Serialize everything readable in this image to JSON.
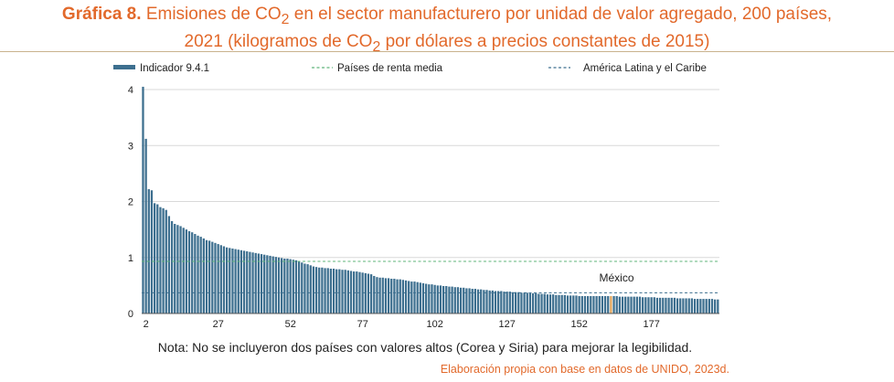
{
  "header": {
    "lead": "Gráfica 8.",
    "line1_a": "Emisiones de CO",
    "line1_sub": "2",
    "line1_b": "en el sector manufacturero por unidad de valor agregado, 200 países,",
    "line2_a": "2021 (kilogramos de CO",
    "line2_sub": "2",
    "line2_b": "por dólares a precios constantes de 2015)"
  },
  "note": "Nota: No se incluyeron dos países con valores altos (Corea y Siria) para mejorar la legibilidad.",
  "source": "Elaboración propia con base en datos de UNIDO, 2023d.",
  "colors": {
    "bar": "#3d6f8f",
    "highlight": "#e2a55a",
    "middle_income_line": "#5fb57a",
    "latam_line": "#3d6f8f",
    "title": "#e2692b"
  },
  "chart_data": {
    "type": "bar",
    "legend": [
      {
        "label": "Indicador 9.4.1",
        "style": "bar"
      },
      {
        "label": "Países de renta media",
        "style": "dashed"
      },
      {
        "label": "América Latina y el Caribe",
        "style": "dashed"
      }
    ],
    "legend_position": "top",
    "x_start": 1,
    "x_ticks": [
      2,
      27,
      52,
      77,
      102,
      127,
      152,
      177
    ],
    "y_ticks": [
      0,
      1,
      2,
      3,
      4
    ],
    "ylim": [
      0,
      4
    ],
    "grid": true,
    "reference_lines": [
      {
        "label": "Países de renta media",
        "value": 0.93
      },
      {
        "label": "América Latina y el Caribe",
        "value": 0.37
      }
    ],
    "highlight": {
      "label": "México",
      "index": 163,
      "value": 0.31
    },
    "values": [
      4.05,
      3.12,
      2.22,
      2.2,
      1.97,
      1.95,
      1.9,
      1.88,
      1.85,
      1.74,
      1.65,
      1.6,
      1.58,
      1.56,
      1.53,
      1.5,
      1.47,
      1.45,
      1.42,
      1.39,
      1.37,
      1.34,
      1.31,
      1.3,
      1.28,
      1.26,
      1.24,
      1.22,
      1.2,
      1.18,
      1.17,
      1.16,
      1.15,
      1.14,
      1.13,
      1.12,
      1.11,
      1.1,
      1.09,
      1.08,
      1.07,
      1.06,
      1.05,
      1.04,
      1.03,
      1.02,
      1.01,
      1.0,
      0.99,
      0.98,
      0.98,
      0.97,
      0.96,
      0.95,
      0.93,
      0.91,
      0.89,
      0.88,
      0.86,
      0.84,
      0.83,
      0.82,
      0.82,
      0.81,
      0.81,
      0.8,
      0.8,
      0.79,
      0.79,
      0.78,
      0.78,
      0.77,
      0.76,
      0.75,
      0.75,
      0.74,
      0.73,
      0.72,
      0.71,
      0.7,
      0.67,
      0.65,
      0.64,
      0.64,
      0.63,
      0.63,
      0.62,
      0.62,
      0.61,
      0.61,
      0.6,
      0.59,
      0.58,
      0.57,
      0.57,
      0.56,
      0.55,
      0.54,
      0.53,
      0.52,
      0.52,
      0.51,
      0.5,
      0.5,
      0.49,
      0.49,
      0.48,
      0.48,
      0.47,
      0.47,
      0.46,
      0.46,
      0.45,
      0.45,
      0.44,
      0.44,
      0.43,
      0.43,
      0.42,
      0.42,
      0.41,
      0.41,
      0.4,
      0.4,
      0.4,
      0.39,
      0.39,
      0.39,
      0.38,
      0.38,
      0.38,
      0.37,
      0.37,
      0.37,
      0.36,
      0.36,
      0.36,
      0.35,
      0.35,
      0.35,
      0.34,
      0.34,
      0.34,
      0.33,
      0.33,
      0.33,
      0.33,
      0.32,
      0.32,
      0.32,
      0.32,
      0.31,
      0.31,
      0.31,
      0.31,
      0.31,
      0.31,
      0.31,
      0.31,
      0.31,
      0.31,
      0.31,
      0.31,
      0.31,
      0.31,
      0.3,
      0.3,
      0.3,
      0.3,
      0.3,
      0.3,
      0.3,
      0.3,
      0.29,
      0.29,
      0.29,
      0.29,
      0.29,
      0.28,
      0.28,
      0.28,
      0.28,
      0.28,
      0.28,
      0.28,
      0.27,
      0.27,
      0.27,
      0.27,
      0.27,
      0.27,
      0.26,
      0.26,
      0.26,
      0.26,
      0.26,
      0.26,
      0.26,
      0.25,
      0.25
    ]
  }
}
